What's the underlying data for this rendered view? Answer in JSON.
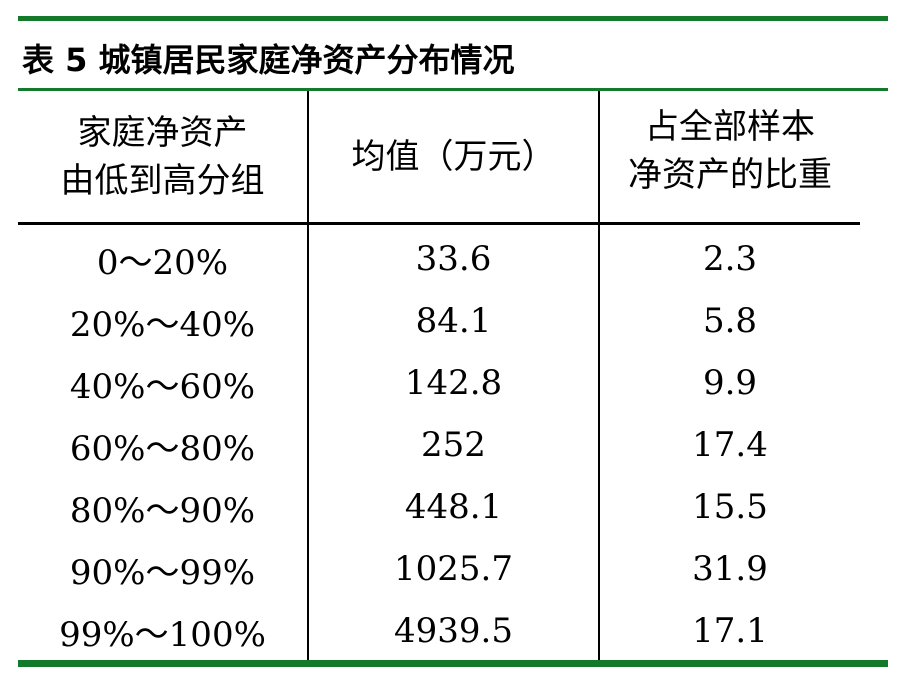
{
  "title": "表 5  城镇居民家庭净资产分布情况",
  "headers": [
    {
      "lines": [
        "家庭净资产",
        "由低到高分组"
      ]
    },
    {
      "lines": [
        "均值（万元）"
      ]
    },
    {
      "lines": [
        "占全部样本",
        "净资产的比重"
      ]
    }
  ],
  "rows": [
    {
      "group": "0～20%",
      "mean": "33.6",
      "share": "2.3"
    },
    {
      "group": "20%～40%",
      "mean": "84.1",
      "share": "5.8"
    },
    {
      "group": "40%～60%",
      "mean": "142.8",
      "share": "9.9"
    },
    {
      "group": "60%～80%",
      "mean": "252",
      "share": "17.4"
    },
    {
      "group": "80%～90%",
      "mean": "448.1",
      "share": "15.5"
    },
    {
      "group": "90%～99%",
      "mean": "1025.7",
      "share": "31.9"
    },
    {
      "group": "99%～100%",
      "mean": "4939.5",
      "share": "17.1"
    }
  ],
  "colors": {
    "accent_rule": "#127a2a",
    "grid": "#000000"
  }
}
